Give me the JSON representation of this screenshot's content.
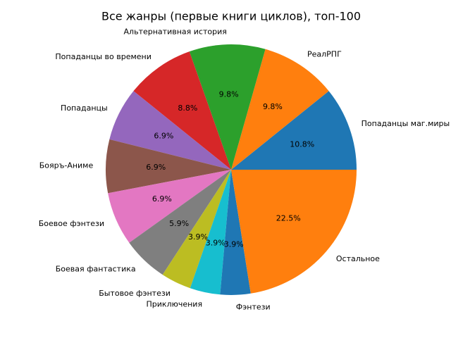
{
  "chart_data": {
    "type": "pie",
    "title": "Все жанры (первые книги циклов), топ-100",
    "categories": [
      "Попаданцы маг.миры",
      "РеалРПГ",
      "Альтернативная история",
      "Попаданцы во времени",
      "Попаданцы",
      "Бояръ-Аниме",
      "Боевое фэнтези",
      "Боевая фантастика",
      "Бытовое фэнтези",
      "Приключения",
      "Фэнтези",
      "Остальное"
    ],
    "values": [
      10.8,
      9.8,
      9.8,
      8.8,
      6.9,
      6.9,
      6.9,
      5.9,
      3.9,
      3.9,
      3.9,
      22.5
    ],
    "value_labels": [
      "10.8%",
      "9.8%",
      "9.8%",
      "8.8%",
      "6.9%",
      "6.9%",
      "6.9%",
      "5.9%",
      "3.9%",
      "3.9%",
      "3.9%",
      "22.5%"
    ],
    "colors": [
      "#1f77b4",
      "#ff7f0e",
      "#2ca02c",
      "#d62728",
      "#9467bd",
      "#8c564b",
      "#e377c2",
      "#7f7f7f",
      "#bcbd22",
      "#17becf",
      "#1f77b4",
      "#ff7f0e"
    ]
  }
}
